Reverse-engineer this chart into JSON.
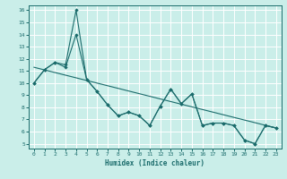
{
  "xlabel": "Humidex (Indice chaleur)",
  "bg_color": "#caeee9",
  "grid_color": "#ffffff",
  "line_color": "#1a6b6b",
  "xlim": [
    -0.5,
    23.5
  ],
  "ylim": [
    4.6,
    16.4
  ],
  "ytick_vals": [
    5,
    6,
    7,
    8,
    9,
    10,
    11,
    12,
    13,
    14,
    15,
    16
  ],
  "xtick_vals": [
    0,
    1,
    2,
    3,
    4,
    5,
    6,
    7,
    8,
    9,
    10,
    11,
    12,
    13,
    14,
    15,
    16,
    17,
    18,
    19,
    20,
    21,
    22,
    23
  ],
  "line1_x": [
    0,
    1,
    2,
    3,
    4,
    5,
    6,
    7,
    8,
    9,
    10,
    11,
    12,
    13,
    14,
    15,
    16,
    17,
    18,
    19,
    20,
    21,
    22,
    23
  ],
  "line1_y": [
    10,
    11.1,
    11.7,
    11.5,
    16,
    10.3,
    9.3,
    8.2,
    7.3,
    7.6,
    7.3,
    6.5,
    8.1,
    9.5,
    8.3,
    9.1,
    6.5,
    6.7,
    6.7,
    6.5,
    5.3,
    5.0,
    6.5,
    6.3
  ],
  "line2_x": [
    0,
    1,
    2,
    3,
    4,
    5,
    6,
    7,
    8,
    9,
    10,
    11,
    12,
    13,
    14,
    15,
    16,
    17,
    18,
    19,
    20,
    21,
    22,
    23
  ],
  "line2_y": [
    10,
    11.1,
    11.7,
    11.3,
    14.0,
    10.3,
    9.3,
    8.2,
    7.3,
    7.6,
    7.3,
    6.5,
    8.1,
    9.5,
    8.3,
    9.1,
    6.5,
    6.7,
    6.7,
    6.5,
    5.3,
    5.0,
    6.5,
    6.3
  ],
  "trend_x": [
    0,
    23
  ],
  "trend_y": [
    11.3,
    6.3
  ]
}
